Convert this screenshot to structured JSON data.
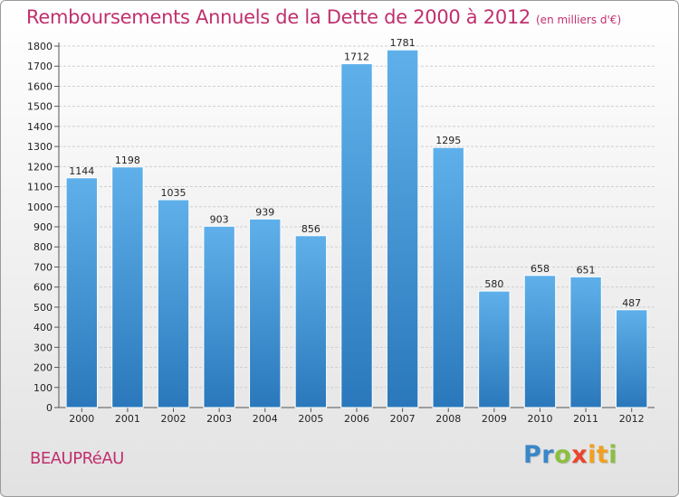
{
  "title": "Remboursements Annuels de la Dette de 2000 à 2012",
  "subtitle": "(en milliers d'€)",
  "commune": "BEAUPRéAU",
  "logo": {
    "letters": [
      "P",
      "r",
      "o",
      "x",
      "i",
      "t",
      "i"
    ],
    "colors": [
      "#3a86c8",
      "#3a86c8",
      "#8bbf3f",
      "#e8452c",
      "#f0a020",
      "#f0a020",
      "#8bbf3f"
    ]
  },
  "colors": {
    "bar_top": "#5fb0ea",
    "bar_bottom": "#2a78bb",
    "title": "#c0306e",
    "grid": "#cfcfcf"
  },
  "chart_data": {
    "type": "bar",
    "categories": [
      "2000",
      "2001",
      "2002",
      "2003",
      "2004",
      "2005",
      "2006",
      "2007",
      "2008",
      "2009",
      "2010",
      "2011",
      "2012"
    ],
    "values": [
      1144,
      1198,
      1035,
      903,
      939,
      856,
      1712,
      1781,
      1295,
      580,
      658,
      651,
      487
    ],
    "title": "Remboursements Annuels de la Dette de 2000 à 2012",
    "subtitle": "(en milliers d'€)",
    "ylim": [
      0,
      1800
    ],
    "yticks": [
      0,
      100,
      200,
      300,
      400,
      500,
      600,
      700,
      800,
      900,
      1000,
      1100,
      1200,
      1300,
      1400,
      1500,
      1600,
      1700,
      1800
    ],
    "grid": true,
    "data_labels": true
  }
}
